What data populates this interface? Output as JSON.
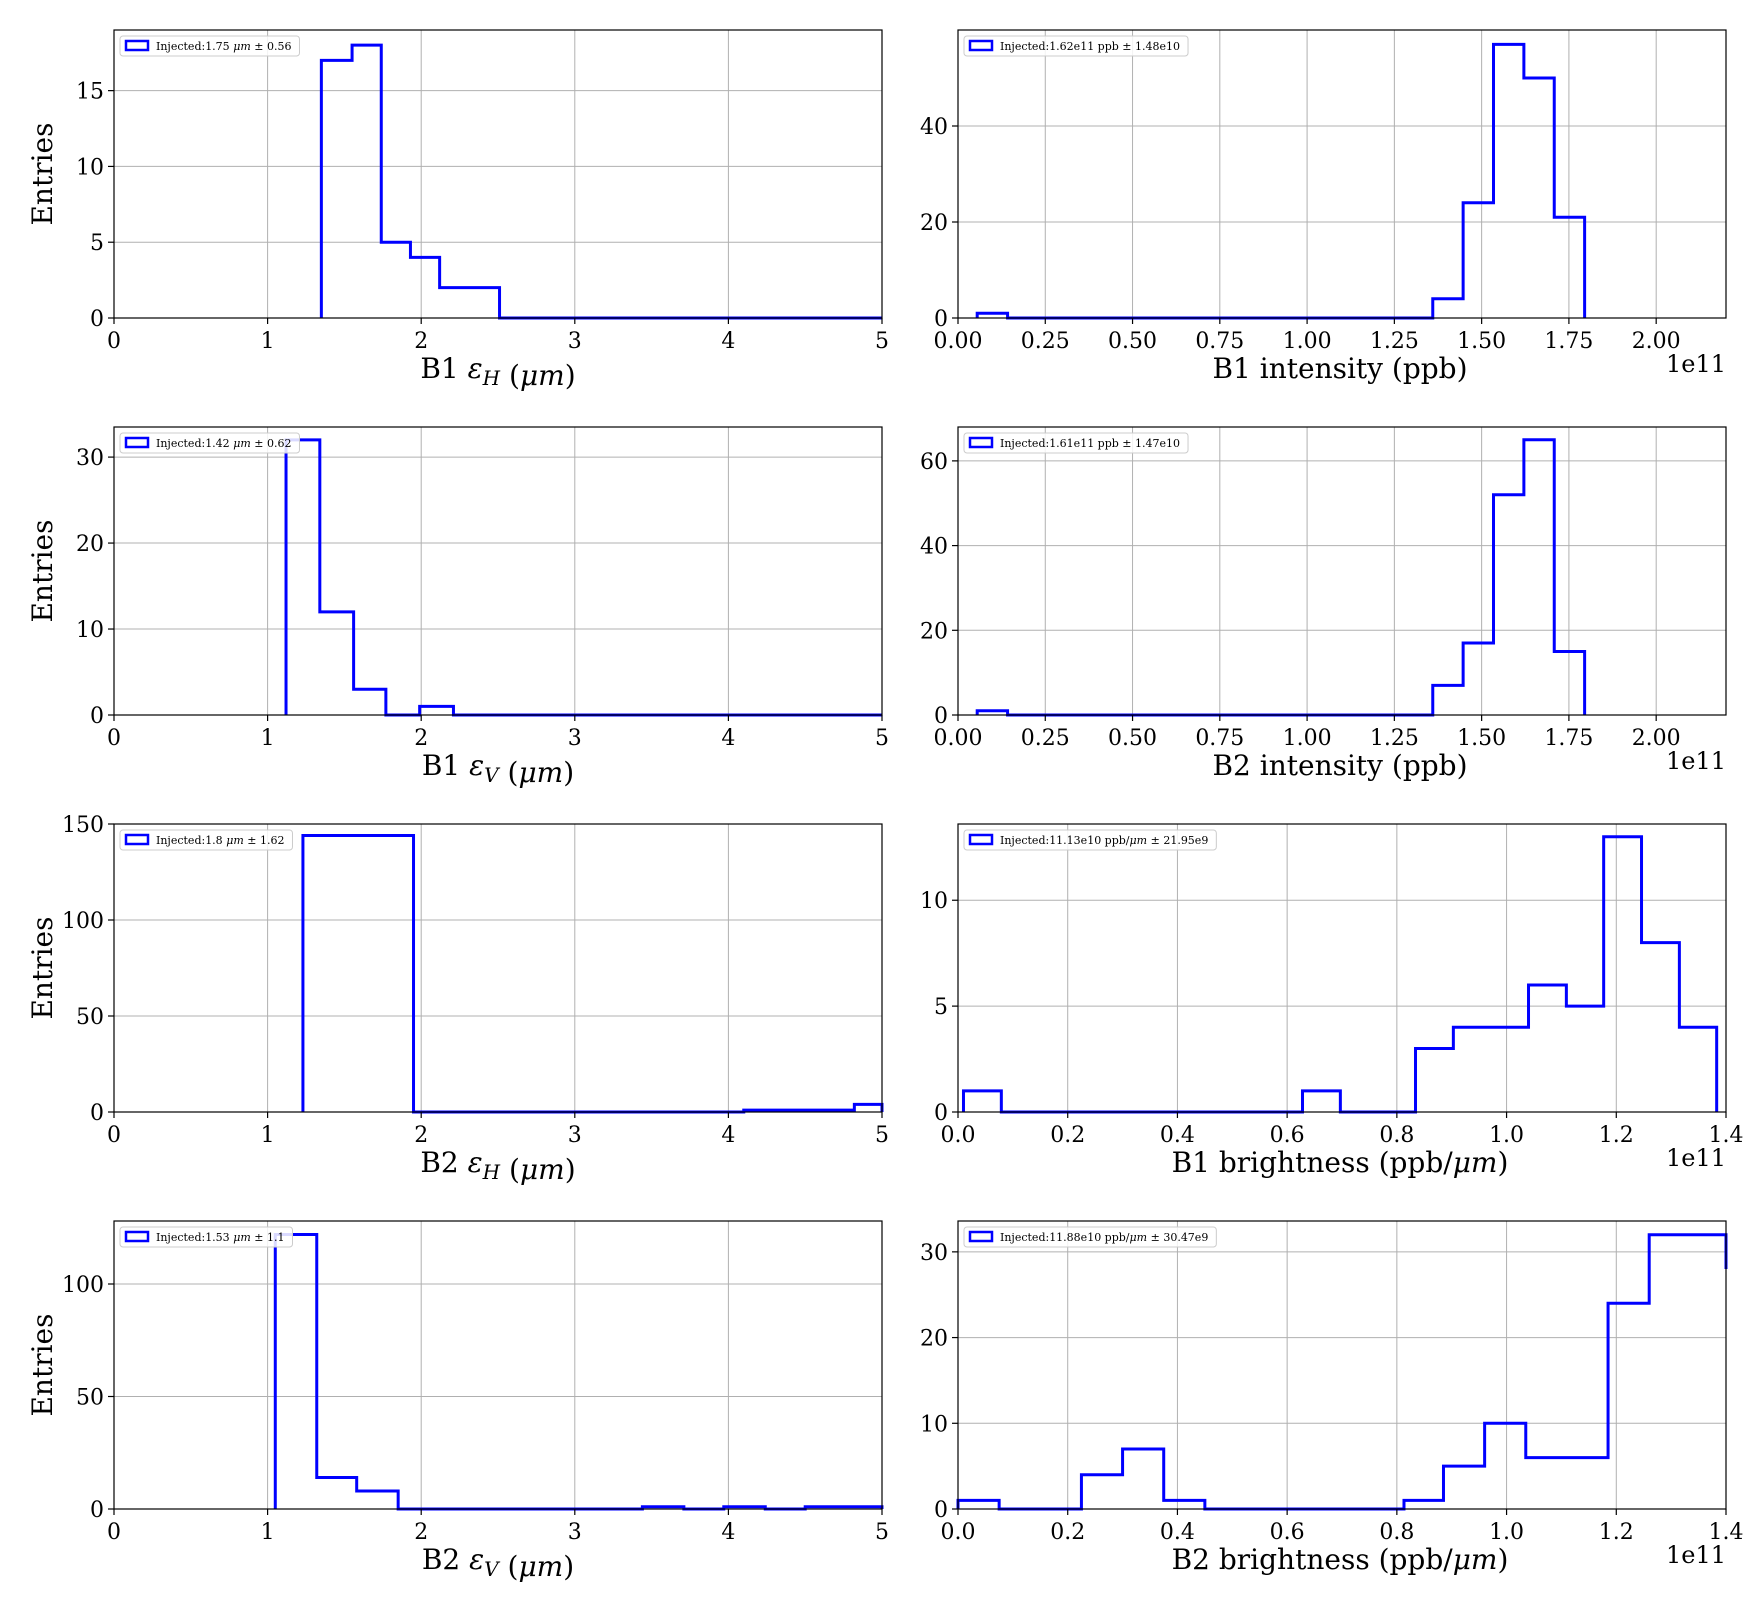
{
  "figure": {
    "colors": {
      "line": "#0000ff",
      "grid": "#b0b0b0",
      "axes": "#000000"
    }
  },
  "chart_data": [
    {
      "type": "histogram",
      "xlabel": "B1 εH (μm)",
      "ylabel": "Entries",
      "legend": "Injected:1.75 μm ± 0.56",
      "legend_position": "top-left",
      "grid": true,
      "xlim": [
        0,
        5
      ],
      "ylim": [
        0,
        19
      ],
      "xticks": [
        0,
        1,
        2,
        3,
        4,
        5
      ],
      "xtick_labels": [
        "0",
        "1",
        "2",
        "3",
        "4",
        "5"
      ],
      "yticks": [
        0,
        5,
        10,
        15
      ],
      "ytick_labels": [
        "0",
        "5",
        "10",
        "15"
      ],
      "offset_text": "",
      "bin_edges": [
        1.35,
        1.55,
        1.74,
        1.93,
        2.12,
        2.31,
        2.51
      ],
      "counts": [
        17,
        18,
        5,
        4,
        2,
        2
      ],
      "end_x": 5
    },
    {
      "type": "histogram",
      "xlabel": "B1 intensity (ppb)",
      "ylabel": "",
      "legend": "Injected:1.62e11 ppb ± 1.48e10",
      "legend_position": "top-left",
      "grid": true,
      "xlim": [
        0.0,
        2.2
      ],
      "ylim": [
        0,
        60
      ],
      "xticks": [
        0,
        0.25,
        0.5,
        0.75,
        1.0,
        1.25,
        1.5,
        1.75,
        2.0
      ],
      "xtick_labels": [
        "0.00",
        "0.25",
        "0.50",
        "0.75",
        "1.00",
        "1.25",
        "1.50",
        "1.75",
        "2.00"
      ],
      "yticks": [
        0,
        20,
        40
      ],
      "ytick_labels": [
        "0",
        "20",
        "40"
      ],
      "offset_text": "1e11",
      "bin_edges": [
        0.055,
        0.142,
        0.229,
        0.316,
        0.403,
        0.49,
        0.577,
        0.664,
        0.751,
        0.838,
        0.925,
        1.012,
        1.099,
        1.186,
        1.273,
        1.36,
        1.447,
        1.534,
        1.621,
        1.708,
        1.795
      ],
      "counts": [
        1,
        0,
        0,
        0,
        0,
        0,
        0,
        0,
        0,
        0,
        0,
        0,
        0,
        0,
        0,
        4,
        24,
        57,
        50,
        21
      ]
    },
    {
      "type": "histogram",
      "xlabel": "B1 εV (μm)",
      "ylabel": "Entries",
      "legend": "Injected:1.42 μm ± 0.62",
      "legend_position": "top-left",
      "grid": true,
      "xlim": [
        0,
        5
      ],
      "ylim": [
        0,
        33.5
      ],
      "xticks": [
        0,
        1,
        2,
        3,
        4,
        5
      ],
      "xtick_labels": [
        "0",
        "1",
        "2",
        "3",
        "4",
        "5"
      ],
      "yticks": [
        0,
        10,
        20,
        30
      ],
      "ytick_labels": [
        "0",
        "10",
        "20",
        "30"
      ],
      "offset_text": "",
      "bin_edges": [
        1.12,
        1.34,
        1.56,
        1.77,
        1.99,
        2.21
      ],
      "counts": [
        32,
        12,
        3,
        0,
        1
      ],
      "end_x": 5
    },
    {
      "type": "histogram",
      "xlabel": "B2 intensity (ppb)",
      "ylabel": "",
      "legend": "Injected:1.61e11 ppb ± 1.47e10",
      "legend_position": "top-left",
      "grid": true,
      "xlim": [
        0.0,
        2.2
      ],
      "ylim": [
        0,
        68
      ],
      "xticks": [
        0,
        0.25,
        0.5,
        0.75,
        1.0,
        1.25,
        1.5,
        1.75,
        2.0
      ],
      "xtick_labels": [
        "0.00",
        "0.25",
        "0.50",
        "0.75",
        "1.00",
        "1.25",
        "1.50",
        "1.75",
        "2.00"
      ],
      "yticks": [
        0,
        20,
        40,
        60
      ],
      "ytick_labels": [
        "0",
        "20",
        "40",
        "60"
      ],
      "offset_text": "1e11",
      "bin_edges": [
        0.055,
        0.142,
        0.229,
        0.316,
        0.403,
        0.49,
        0.577,
        0.664,
        0.751,
        0.838,
        0.925,
        1.012,
        1.099,
        1.186,
        1.273,
        1.36,
        1.447,
        1.534,
        1.621,
        1.708,
        1.795
      ],
      "counts": [
        1,
        0,
        0,
        0,
        0,
        0,
        0,
        0,
        0,
        0,
        0,
        0,
        0,
        0,
        0,
        7,
        17,
        52,
        65,
        15
      ]
    },
    {
      "type": "histogram",
      "xlabel": "B2 εH (μm)",
      "ylabel": "Entries",
      "legend": "Injected:1.8 μm ± 1.62",
      "legend_position": "top-left",
      "grid": true,
      "xlim": [
        0,
        5
      ],
      "ylim": [
        0,
        150
      ],
      "xticks": [
        0,
        1,
        2,
        3,
        4,
        5
      ],
      "xtick_labels": [
        "0",
        "1",
        "2",
        "3",
        "4",
        "5"
      ],
      "yticks": [
        0,
        50,
        100,
        150
      ],
      "ytick_labels": [
        "0",
        "50",
        "100",
        "150"
      ],
      "offset_text": "",
      "bin_edges": [
        1.23,
        1.95,
        2.67,
        3.39,
        4.1,
        4.82,
        5.0
      ],
      "counts": [
        144,
        0,
        0,
        0,
        1,
        4
      ]
    },
    {
      "type": "histogram",
      "xlabel": "B1 brightness (ppb/μm)",
      "ylabel": "",
      "legend": "Injected:11.13e10 ppb/μm ± 21.95e9",
      "legend_position": "top-left",
      "grid": true,
      "xlim": [
        0.0,
        1.4
      ],
      "ylim": [
        0,
        13.6
      ],
      "xticks": [
        0,
        0.2,
        0.4,
        0.6,
        0.8,
        1.0,
        1.2,
        1.4
      ],
      "xtick_labels": [
        "0.0",
        "0.2",
        "0.4",
        "0.6",
        "0.8",
        "1.0",
        "1.2",
        "1.4"
      ],
      "yticks": [
        0,
        5,
        10
      ],
      "ytick_labels": [
        "0",
        "5",
        "10"
      ],
      "offset_text": "1e11",
      "bin_edges": [
        0.01,
        0.079,
        0.147,
        0.216,
        0.285,
        0.353,
        0.422,
        0.491,
        0.559,
        0.628,
        0.697,
        0.765,
        0.834,
        0.903,
        0.971,
        1.04,
        1.109,
        1.177,
        1.246,
        1.315,
        1.383
      ],
      "counts": [
        1,
        0,
        0,
        0,
        0,
        0,
        0,
        0,
        0,
        1,
        0,
        0,
        3,
        4,
        4,
        6,
        5,
        13,
        8,
        4
      ]
    },
    {
      "type": "histogram",
      "xlabel": "B2 εV (μm)",
      "ylabel": "Entries",
      "legend": "Injected:1.53 μm ± 1.1",
      "legend_position": "top-left",
      "grid": true,
      "xlim": [
        0,
        5
      ],
      "ylim": [
        0,
        128
      ],
      "xticks": [
        0,
        1,
        2,
        3,
        4,
        5
      ],
      "xtick_labels": [
        "0",
        "1",
        "2",
        "3",
        "4",
        "5"
      ],
      "yticks": [
        0,
        50,
        100
      ],
      "ytick_labels": [
        "0",
        "50",
        "100"
      ],
      "offset_text": "",
      "bin_edges": [
        1.05,
        1.32,
        1.58,
        1.85,
        2.11,
        2.38,
        2.64,
        2.91,
        3.17,
        3.44,
        3.71,
        3.97,
        4.24,
        4.5,
        4.77,
        5.0
      ],
      "counts": [
        122,
        14,
        8,
        0,
        0,
        0,
        0,
        0,
        0,
        1,
        0,
        1,
        0,
        1,
        1
      ]
    },
    {
      "type": "histogram",
      "xlabel": "B2 brightness (ppb/μm)",
      "ylabel": "",
      "legend": "Injected:11.88e10 ppb/μm ± 30.47e9",
      "legend_position": "top-left",
      "grid": true,
      "xlim": [
        0.0,
        1.4
      ],
      "ylim": [
        0,
        33.6
      ],
      "xticks": [
        0,
        0.2,
        0.4,
        0.6,
        0.8,
        1.0,
        1.2,
        1.4
      ],
      "xtick_labels": [
        "0.0",
        "0.2",
        "0.4",
        "0.6",
        "0.8",
        "1.0",
        "1.2",
        "1.4"
      ],
      "yticks": [
        0,
        10,
        20,
        30
      ],
      "ytick_labels": [
        "0",
        "10",
        "20",
        "30"
      ],
      "offset_text": "1e11",
      "bin_edges": [
        0.0,
        0.075,
        0.15,
        0.225,
        0.3,
        0.375,
        0.45,
        0.525,
        0.6,
        0.675,
        0.75,
        0.813,
        0.885,
        0.96,
        1.035,
        1.11,
        1.185,
        1.26,
        1.335,
        1.4
      ],
      "counts": [
        1,
        0,
        0,
        4,
        7,
        1,
        0,
        0,
        0,
        0,
        0,
        1,
        5,
        10,
        6,
        6,
        24,
        32,
        32
      ],
      "end_count": 28
    }
  ]
}
